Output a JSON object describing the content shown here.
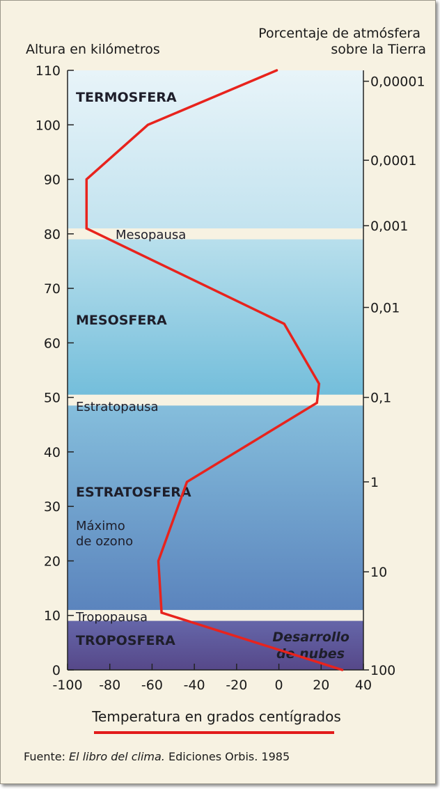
{
  "chart_data": {
    "type": "line",
    "ylabel": "Altura en kilómetros",
    "y2label_lines": [
      "Porcentaje de atmósfera",
      "sobre la Tierra"
    ],
    "xlabel": "Temperatura en grados centígrados",
    "xlim": [
      -100,
      40
    ],
    "ylim": [
      0,
      110
    ],
    "x_ticks": [
      -100,
      -80,
      -60,
      -40,
      -20,
      0,
      20,
      40
    ],
    "x_tick_labels": [
      "-100",
      "-80",
      "-60",
      "-40",
      "-20",
      "0",
      "20",
      "40"
    ],
    "y_ticks": [
      0,
      10,
      20,
      30,
      40,
      50,
      60,
      70,
      80,
      90,
      100,
      110
    ],
    "y_tick_labels": [
      "0",
      "10",
      "20",
      "30",
      "40",
      "50",
      "60",
      "70",
      "80",
      "90",
      "100",
      "110"
    ],
    "y2_ticks": [
      {
        "label": "0,00001",
        "altitude": 108
      },
      {
        "label": "0,0001",
        "altitude": 93.5
      },
      {
        "label": "0,001",
        "altitude": 81.5
      },
      {
        "label": "0,01",
        "altitude": 66.5
      },
      {
        "label": "0,1",
        "altitude": 50
      },
      {
        "label": "1",
        "altitude": 34.5
      },
      {
        "label": "10",
        "altitude": 18
      },
      {
        "label": "100",
        "altitude": 0
      }
    ],
    "series": [
      {
        "x": [
          30,
          -55.5,
          -57,
          -43.5,
          18,
          19,
          2.5,
          -91,
          -91,
          -62,
          -1
        ],
        "y": [
          0,
          10.5,
          20,
          34.5,
          49,
          52.5,
          63.5,
          81,
          90,
          100,
          110
        ]
      }
    ],
    "layers": [
      {
        "label": "TROPOSFERA",
        "from": 0,
        "to": 9
      },
      {
        "label": "ESTRATOSFERA",
        "from": 11,
        "to": 48.5
      },
      {
        "label": "MESOSFERA",
        "from": 50.5,
        "to": 79
      },
      {
        "label": "TERMOSFERA",
        "from": 81,
        "to": 110
      }
    ],
    "boundaries": [
      {
        "label": "Tropopausa",
        "altitude": 10
      },
      {
        "label": "Estratopausa",
        "altitude": 49.5
      },
      {
        "label": "Mesopausa",
        "altitude": 80
      }
    ],
    "annotations": [
      {
        "lines": [
          "Máximo",
          "de ozono"
        ]
      },
      {
        "lines": [
          "Desarrollo",
          "de nubes"
        ]
      }
    ],
    "grid": false,
    "colors": {
      "line": "#e8231d",
      "background": "#f7f2e2",
      "sky_top": "#e7f3f8",
      "sky_mid": "#80c3de",
      "sky_low": "#5f86be",
      "troposphere": "#5e5296"
    }
  },
  "source": {
    "prefix": "Fuente: ",
    "title": "El libro del clima.",
    "rest": " Ediciones Orbis. 1985"
  }
}
